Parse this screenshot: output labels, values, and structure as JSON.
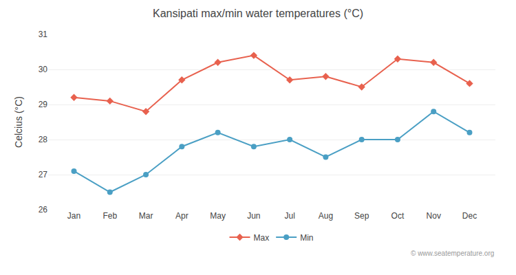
{
  "chart_data": {
    "type": "line",
    "title": "Kansipati max/min water temperatures (°C)",
    "y_label": "Celcius (°C)",
    "categories": [
      "Jan",
      "Feb",
      "Mar",
      "Apr",
      "May",
      "Jun",
      "Jul",
      "Aug",
      "Sep",
      "Oct",
      "Nov",
      "Dec"
    ],
    "series": [
      {
        "name": "Max",
        "color": "#e8614e",
        "marker": "diamond",
        "values": [
          29.2,
          29.1,
          28.8,
          29.7,
          30.2,
          30.4,
          29.7,
          29.8,
          29.5,
          30.3,
          30.2,
          29.6
        ]
      },
      {
        "name": "Min",
        "color": "#4a9fc4",
        "marker": "circle",
        "values": [
          27.1,
          26.5,
          27.0,
          27.8,
          28.2,
          27.8,
          28.0,
          27.5,
          28.0,
          28.0,
          28.8,
          28.2
        ]
      }
    ],
    "ylim": [
      26,
      31
    ],
    "yticks": [
      26,
      27,
      28,
      29,
      30,
      31
    ],
    "grid": true,
    "legend": "bottom",
    "annotations": [
      "© www.seatemperature.org"
    ]
  }
}
